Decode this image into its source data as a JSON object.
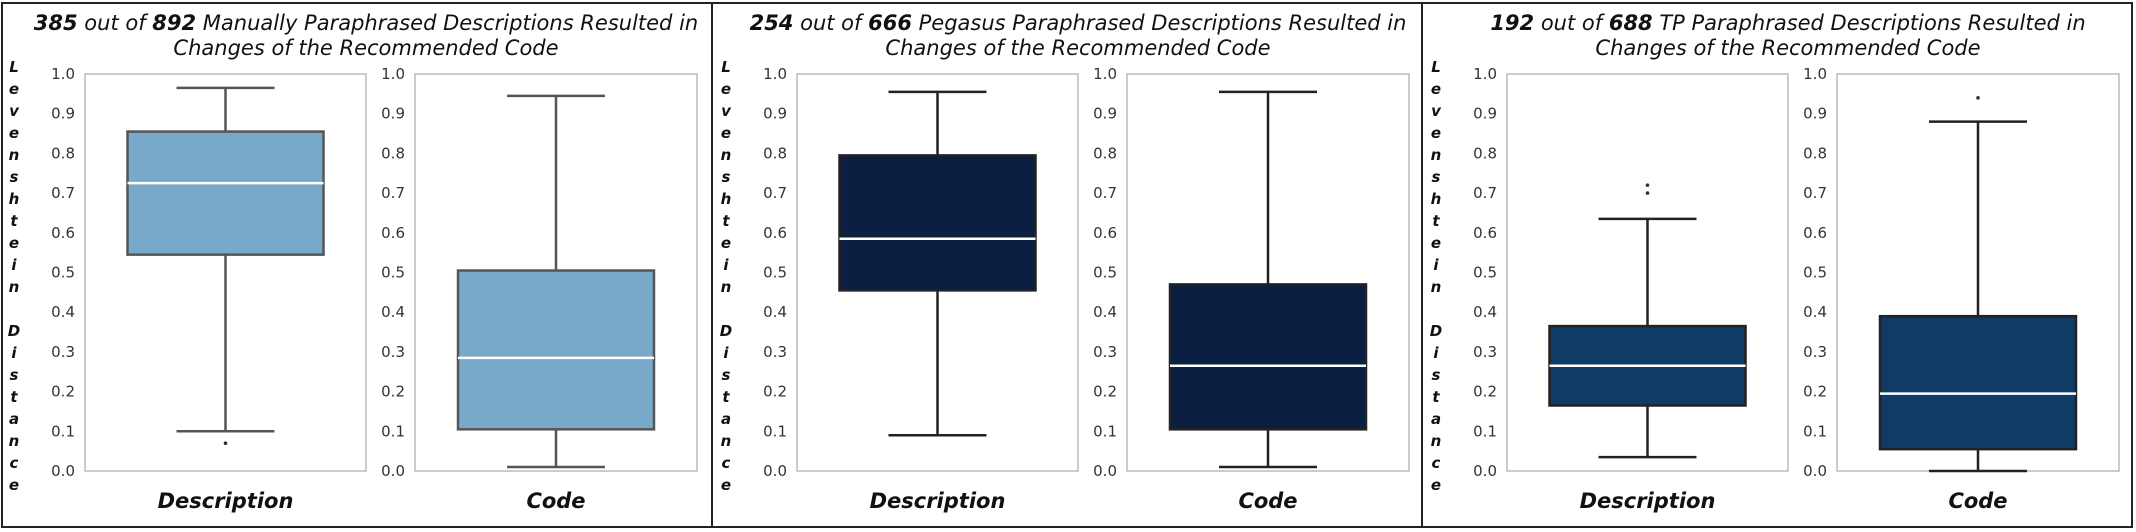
{
  "chart_data": [
    {
      "type": "box",
      "title": {
        "count": "385",
        "mid": "out of",
        "total": "892",
        "rest": "Manually Paraphrased Descriptions Resulted in",
        "line2": "Changes of the Recommended Code"
      },
      "ylabel": "Levenshtein Distance",
      "color": "#78a9ca",
      "plots": [
        {
          "xlabel": "Description",
          "ylim": [
            0.0,
            1.0
          ],
          "ticks": [
            "0.0",
            "0.1",
            "0.2",
            "0.3",
            "0.4",
            "0.5",
            "0.6",
            "0.7",
            "0.8",
            "0.9",
            "1.0"
          ],
          "stats": {
            "whislo": 0.1,
            "q1": 0.545,
            "med": 0.725,
            "q3": 0.855,
            "whishi": 0.965
          },
          "fliers": [
            0.07
          ]
        },
        {
          "xlabel": "Code",
          "ylim": [
            0.0,
            1.0
          ],
          "ticks": [
            "0.0",
            "0.1",
            "0.2",
            "0.3",
            "0.4",
            "0.5",
            "0.6",
            "0.7",
            "0.8",
            "0.9",
            "1.0"
          ],
          "stats": {
            "whislo": 0.01,
            "q1": 0.105,
            "med": 0.285,
            "q3": 0.505,
            "whishi": 0.945
          },
          "fliers": []
        }
      ]
    },
    {
      "type": "box",
      "title": {
        "count": "254",
        "mid": "out of",
        "total": "666",
        "rest": "Pegasus Paraphrased Descriptions Resulted in",
        "line2": "Changes of the Recommended Code"
      },
      "ylabel": "Levenshtein Distance",
      "color": "#0b1f42",
      "plots": [
        {
          "xlabel": "Description",
          "ylim": [
            0.0,
            1.0
          ],
          "ticks": [
            "0.0",
            "0.1",
            "0.2",
            "0.3",
            "0.4",
            "0.5",
            "0.6",
            "0.7",
            "0.8",
            "0.9",
            "1.0"
          ],
          "stats": {
            "whislo": 0.09,
            "q1": 0.455,
            "med": 0.585,
            "q3": 0.795,
            "whishi": 0.955
          },
          "fliers": []
        },
        {
          "xlabel": "Code",
          "ylim": [
            0.0,
            1.0
          ],
          "ticks": [
            "0.0",
            "0.1",
            "0.2",
            "0.3",
            "0.4",
            "0.5",
            "0.6",
            "0.7",
            "0.8",
            "0.9",
            "1.0"
          ],
          "stats": {
            "whislo": 0.01,
            "q1": 0.105,
            "med": 0.265,
            "q3": 0.47,
            "whishi": 0.955
          },
          "fliers": []
        }
      ]
    },
    {
      "type": "box",
      "title": {
        "count": "192",
        "mid": "out of",
        "total": "688",
        "rest": "TP Paraphrased Descriptions Resulted in",
        "line2": "Changes of the Recommended Code"
      },
      "ylabel": "Levenshtein Distance",
      "color": "#0f3b66",
      "plots": [
        {
          "xlabel": "Description",
          "ylim": [
            0.0,
            1.0
          ],
          "ticks": [
            "0.0",
            "0.1",
            "0.2",
            "0.3",
            "0.4",
            "0.5",
            "0.6",
            "0.7",
            "0.8",
            "0.9",
            "1.0"
          ],
          "stats": {
            "whislo": 0.035,
            "q1": 0.165,
            "med": 0.265,
            "q3": 0.365,
            "whishi": 0.635
          },
          "fliers": [
            0.7,
            0.72
          ]
        },
        {
          "xlabel": "Code",
          "ylim": [
            0.0,
            1.0
          ],
          "ticks": [
            "0.0",
            "0.1",
            "0.2",
            "0.3",
            "0.4",
            "0.5",
            "0.6",
            "0.7",
            "0.8",
            "0.9",
            "1.0"
          ],
          "stats": {
            "whislo": 0.0,
            "q1": 0.055,
            "med": 0.195,
            "q3": 0.39,
            "whishi": 0.88
          },
          "fliers": [
            0.94
          ]
        }
      ]
    }
  ]
}
